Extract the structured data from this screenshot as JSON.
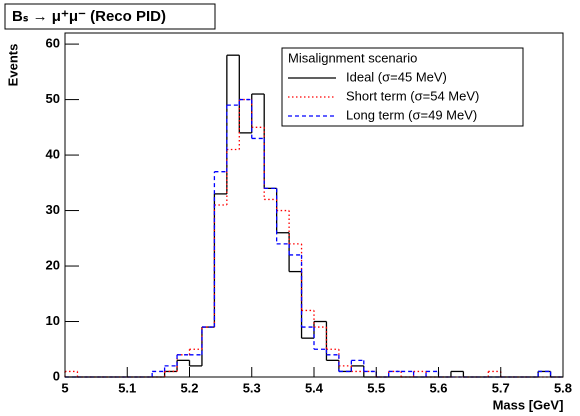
{
  "chart_data": {
    "type": "histogram",
    "title": "Bₛ → μ⁺μ⁻ (Reco PID)",
    "x_label": "Mass [GeV]",
    "y_label": "Events",
    "legend_title": "Misalignment scenario",
    "legend_position": "top-right",
    "bins": [
      5,
      5.02,
      5.04,
      5.06,
      5.08,
      5.1,
      5.12,
      5.14,
      5.16,
      5.18,
      5.2,
      5.22,
      5.24,
      5.26,
      5.28,
      5.3,
      5.32,
      5.34,
      5.36,
      5.38,
      5.4,
      5.42,
      5.44,
      5.46,
      5.48,
      5.5,
      5.52,
      5.54,
      5.56,
      5.58,
      5.6,
      5.62,
      5.64,
      5.66,
      5.68,
      5.7,
      5.72,
      5.74,
      5.76,
      5.78,
      5.8
    ],
    "series": [
      {
        "name": "Ideal (σ=45 MeV)",
        "color": "#000000",
        "style": "solid",
        "values": [
          0,
          0,
          0,
          0,
          0,
          0,
          0,
          0,
          1,
          3,
          2,
          9,
          33,
          58,
          44,
          51,
          34,
          26,
          19,
          7,
          10,
          3,
          1,
          2,
          0,
          0,
          0,
          0,
          0,
          0,
          0,
          1,
          0,
          0,
          0,
          0,
          0,
          0,
          1,
          0
        ]
      },
      {
        "name": "Short term (σ=54 MeV)",
        "color": "#ff0000",
        "style": "dotted",
        "values": [
          1,
          0,
          0,
          0,
          0,
          0,
          0,
          0,
          1,
          4,
          5,
          9,
          31,
          41,
          50,
          45,
          32,
          30,
          24,
          12,
          9,
          5,
          2,
          1,
          1,
          0,
          1,
          0,
          1,
          0,
          0,
          0,
          0,
          0,
          1,
          0,
          0,
          0,
          0,
          0
        ]
      },
      {
        "name": "Long term (σ=49 MeV)",
        "color": "#0000ff",
        "style": "dashed",
        "values": [
          0,
          0,
          0,
          0,
          0,
          0,
          0,
          1,
          2,
          4,
          4,
          9,
          37,
          49,
          50,
          43,
          34,
          24,
          22,
          9,
          5,
          4,
          1,
          3,
          1,
          0,
          1,
          1,
          0,
          1,
          0,
          0,
          0,
          0,
          0,
          0,
          0,
          0,
          1,
          0
        ]
      }
    ],
    "xlim": [
      5,
      5.8
    ],
    "ylim": [
      0,
      62
    ],
    "xticks": [
      5,
      5.1,
      5.2,
      5.3,
      5.4,
      5.5,
      5.6,
      5.7,
      5.8
    ],
    "yticks": [
      0,
      10,
      20,
      30,
      40,
      50,
      60
    ]
  }
}
